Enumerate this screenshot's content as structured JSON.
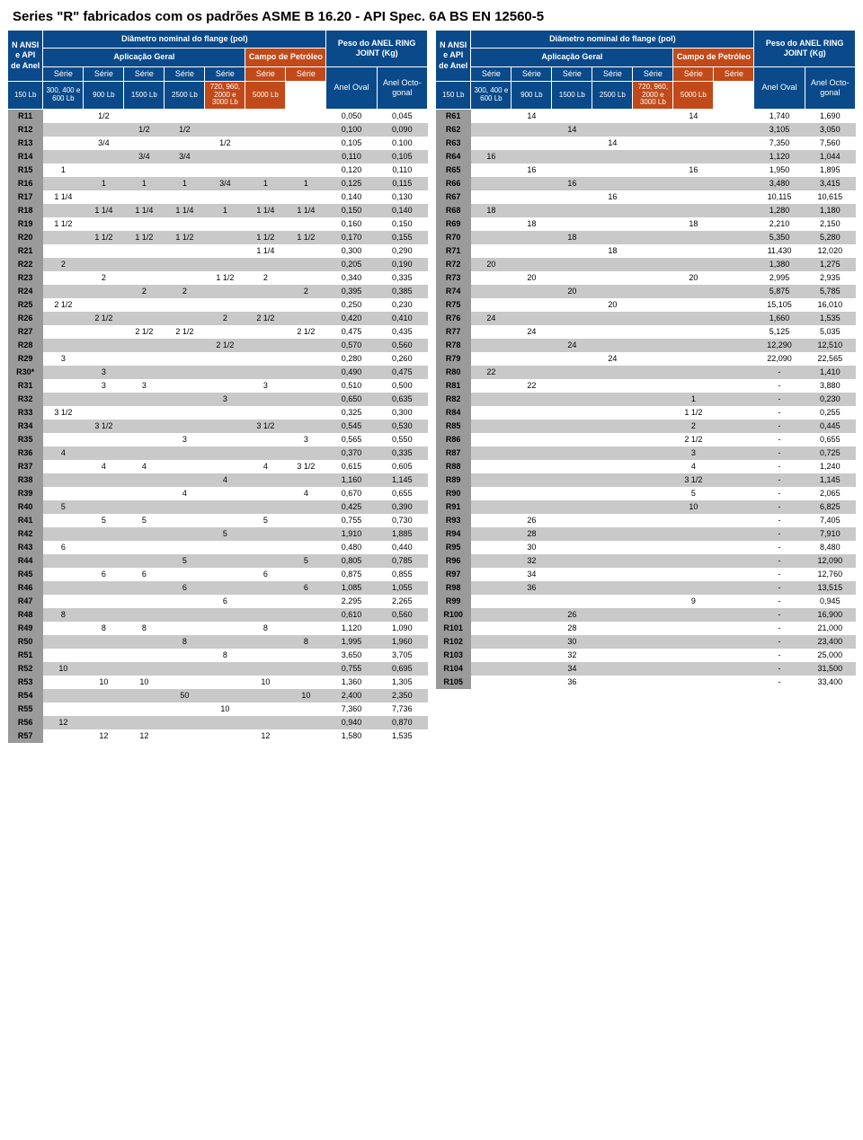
{
  "title": "Series \"R\" fabricados com os padrões ASME B 16.20 - API Spec. 6A BS EN 12560-5",
  "headers": {
    "ansi": "N ANSI e API de Anel",
    "diam": "Diâmetro nominal do flange (pol)",
    "geral": "Aplicação Geral",
    "campo": "Campo de Petróleo",
    "peso": "Peso do ANEL RING JOINT (Kg)",
    "serie": "Série",
    "anel_oval": "Anel Oval",
    "anel_oct": "Anel Octo-gonal",
    "cols": [
      "150 Lb",
      "300, 400 e 600 Lb",
      "900 Lb",
      "1500 Lb",
      "2500 Lb",
      "720, 960, 2000 e 3000 Lb",
      "5000 Lb"
    ]
  },
  "left_rows": [
    [
      "R11",
      "",
      "1/2",
      "",
      "",
      "",
      "",
      "",
      "0,050",
      "0,045"
    ],
    [
      "R12",
      "",
      "",
      "1/2",
      "1/2",
      "",
      "",
      "",
      "0,100",
      "0,090"
    ],
    [
      "R13",
      "",
      "3/4",
      "",
      "",
      "1/2",
      "",
      "",
      "0,105",
      "0.100"
    ],
    [
      "R14",
      "",
      "",
      "3/4",
      "3/4",
      "",
      "",
      "",
      "0,110",
      "0,105"
    ],
    [
      "R15",
      "1",
      "",
      "",
      "",
      "",
      "",
      "",
      "0,120",
      "0,110"
    ],
    [
      "R16",
      "",
      "1",
      "1",
      "1",
      "3/4",
      "1",
      "1",
      "0,125",
      "0,115"
    ],
    [
      "R17",
      "1 1/4",
      "",
      "",
      "",
      "",
      "",
      "",
      "0,140",
      "0,130"
    ],
    [
      "R18",
      "",
      "1 1/4",
      "1 1/4",
      "1 1/4",
      "1",
      "1 1/4",
      "1 1/4",
      "0,150",
      "0,140"
    ],
    [
      "R19",
      "1 1/2",
      "",
      "",
      "",
      "",
      "",
      "",
      "0,160",
      "0,150"
    ],
    [
      "R20",
      "",
      "1 1/2",
      "1 1/2",
      "1 1/2",
      "",
      "1 1/2",
      "1 1/2",
      "0,170",
      "0,155"
    ],
    [
      "R21",
      "",
      "",
      "",
      "",
      "",
      "1 1/4",
      "",
      "0,300",
      "0,290"
    ],
    [
      "R22",
      "2",
      "",
      "",
      "",
      "",
      "",
      "",
      "0,205",
      "0,190"
    ],
    [
      "R23",
      "",
      "2",
      "",
      "",
      "1 1/2",
      "2",
      "",
      "0,340",
      "0,335"
    ],
    [
      "R24",
      "",
      "",
      "2",
      "2",
      "",
      "",
      "2",
      "0,395",
      "0,385"
    ],
    [
      "R25",
      "2 1/2",
      "",
      "",
      "",
      "",
      "",
      "",
      "0,250",
      "0,230"
    ],
    [
      "R26",
      "",
      "2 1/2",
      "",
      "",
      "2",
      "2 1/2",
      "",
      "0,420",
      "0,410"
    ],
    [
      "R27",
      "",
      "",
      "2 1/2",
      "2 1/2",
      "",
      "",
      "2 1/2",
      "0,475",
      "0,435"
    ],
    [
      "R28",
      "",
      "",
      "",
      "",
      "2 1/2",
      "",
      "",
      "0,570",
      "0,560"
    ],
    [
      "R29",
      "3",
      "",
      "",
      "",
      "",
      "",
      "",
      "0,280",
      "0,260"
    ],
    [
      "R30*",
      "",
      "3",
      "",
      "",
      "",
      "",
      "",
      "0,490",
      "0,475"
    ],
    [
      "R31",
      "",
      "3",
      "3",
      "",
      "",
      "3",
      "",
      "0,510",
      "0,500"
    ],
    [
      "R32",
      "",
      "",
      "",
      "",
      "3",
      "",
      "",
      "0,650",
      "0,635"
    ],
    [
      "R33",
      "3 1/2",
      "",
      "",
      "",
      "",
      "",
      "",
      "0,325",
      "0,300"
    ],
    [
      "R34",
      "",
      "3 1/2",
      "",
      "",
      "",
      "3 1/2",
      "",
      "0,545",
      "0,530"
    ],
    [
      "R35",
      "",
      "",
      "",
      "3",
      "",
      "",
      "3",
      "0,565",
      "0,550"
    ],
    [
      "R36",
      "4",
      "",
      "",
      "",
      "",
      "",
      "",
      "0,370",
      "0,335"
    ],
    [
      "R37",
      "",
      "4",
      "4",
      "",
      "",
      "4",
      "3 1/2",
      "0,615",
      "0,605"
    ],
    [
      "R38",
      "",
      "",
      "",
      "",
      "4",
      "",
      "",
      "1,160",
      "1,145"
    ],
    [
      "R39",
      "",
      "",
      "",
      "4",
      "",
      "",
      "4",
      "0,670",
      "0,655"
    ],
    [
      "R40",
      "5",
      "",
      "",
      "",
      "",
      "",
      "",
      "0,425",
      "0,390"
    ],
    [
      "R41",
      "",
      "5",
      "5",
      "",
      "",
      "5",
      "",
      "0,755",
      "0,730"
    ],
    [
      "R42",
      "",
      "",
      "",
      "",
      "5",
      "",
      "",
      "1,910",
      "1,885"
    ],
    [
      "R43",
      "6",
      "",
      "",
      "",
      "",
      "",
      "",
      "0,480",
      "0,440"
    ],
    [
      "R44",
      "",
      "",
      "",
      "5",
      "",
      "",
      "5",
      "0,805",
      "0,785"
    ],
    [
      "R45",
      "",
      "6",
      "6",
      "",
      "",
      "6",
      "",
      "0,875",
      "0,855"
    ],
    [
      "R46",
      "",
      "",
      "",
      "6",
      "",
      "",
      "6",
      "1,085",
      "1,055"
    ],
    [
      "R47",
      "",
      "",
      "",
      "",
      "6",
      "",
      "",
      "2,295",
      "2,265"
    ],
    [
      "R48",
      "8",
      "",
      "",
      "",
      "",
      "",
      "",
      "0,610",
      "0,560"
    ],
    [
      "R49",
      "",
      "8",
      "8",
      "",
      "",
      "8",
      "",
      "1,120",
      "1,090"
    ],
    [
      "R50",
      "",
      "",
      "",
      "8",
      "",
      "",
      "8",
      "1,995",
      "1,960"
    ],
    [
      "R51",
      "",
      "",
      "",
      "",
      "8",
      "",
      "",
      "3,650",
      "3,705"
    ],
    [
      "R52",
      "10",
      "",
      "",
      "",
      "",
      "",
      "",
      "0,755",
      "0,695"
    ],
    [
      "R53",
      "",
      "10",
      "10",
      "",
      "",
      "10",
      "",
      "1,360",
      "1,305"
    ],
    [
      "R54",
      "",
      "",
      "",
      "50",
      "",
      "",
      "10",
      "2,400",
      "2,350"
    ],
    [
      "R55",
      "",
      "",
      "",
      "",
      "10",
      "",
      "",
      "7,360",
      "7,736"
    ],
    [
      "R56",
      "12",
      "",
      "",
      "",
      "",
      "",
      "",
      "0,940",
      "0,870"
    ],
    [
      "R57",
      "",
      "12",
      "12",
      "",
      "",
      "12",
      "",
      "1,580",
      "1,535"
    ]
  ],
  "right_rows": [
    [
      "R61",
      "",
      "14",
      "",
      "",
      "",
      "14",
      "",
      "1,740",
      "1,690"
    ],
    [
      "R62",
      "",
      "",
      "14",
      "",
      "",
      "",
      "",
      "3,105",
      "3,050"
    ],
    [
      "R63",
      "",
      "",
      "",
      "14",
      "",
      "",
      "",
      "7,350",
      "7,560"
    ],
    [
      "R64",
      "16",
      "",
      "",
      "",
      "",
      "",
      "",
      "1,120",
      "1,044"
    ],
    [
      "R65",
      "",
      "16",
      "",
      "",
      "",
      "16",
      "",
      "1,950",
      "1,895"
    ],
    [
      "R66",
      "",
      "",
      "16",
      "",
      "",
      "",
      "",
      "3,480",
      "3,415"
    ],
    [
      "R67",
      "",
      "",
      "",
      "16",
      "",
      "",
      "",
      "10,115",
      "10,615"
    ],
    [
      "R68",
      "18",
      "",
      "",
      "",
      "",
      "",
      "",
      "1,280",
      "1,180"
    ],
    [
      "R69",
      "",
      "18",
      "",
      "",
      "",
      "18",
      "",
      "2,210",
      "2,150"
    ],
    [
      "R70",
      "",
      "",
      "18",
      "",
      "",
      "",
      "",
      "5,350",
      "5,280"
    ],
    [
      "R71",
      "",
      "",
      "",
      "18",
      "",
      "",
      "",
      "11,430",
      "12,020"
    ],
    [
      "R72",
      "20",
      "",
      "",
      "",
      "",
      "",
      "",
      "1,380",
      "1,275"
    ],
    [
      "R73",
      "",
      "20",
      "",
      "",
      "",
      "20",
      "",
      "2,995",
      "2,935"
    ],
    [
      "R74",
      "",
      "",
      "20",
      "",
      "",
      "",
      "",
      "5,875",
      "5,785"
    ],
    [
      "R75",
      "",
      "",
      "",
      "20",
      "",
      "",
      "",
      "15,105",
      "16,010"
    ],
    [
      "R76",
      "24",
      "",
      "",
      "",
      "",
      "",
      "",
      "1,660",
      "1,535"
    ],
    [
      "R77",
      "",
      "24",
      "",
      "",
      "",
      "",
      "",
      "5,125",
      "5,035"
    ],
    [
      "R78",
      "",
      "",
      "24",
      "",
      "",
      "",
      "",
      "12,290",
      "12,510"
    ],
    [
      "R79",
      "",
      "",
      "",
      "24",
      "",
      "",
      "",
      "22,090",
      "22,565"
    ],
    [
      "R80",
      "22",
      "",
      "",
      "",
      "",
      "",
      "",
      "-",
      "1,410"
    ],
    [
      "R81",
      "",
      "22",
      "",
      "",
      "",
      "",
      "",
      "-",
      "3,880"
    ],
    [
      "R82",
      "",
      "",
      "",
      "",
      "",
      "1",
      "",
      "-",
      "0,230"
    ],
    [
      "R84",
      "",
      "",
      "",
      "",
      "",
      "1 1/2",
      "",
      "-",
      "0,255"
    ],
    [
      "R85",
      "",
      "",
      "",
      "",
      "",
      "2",
      "",
      "-",
      "0,445"
    ],
    [
      "R86",
      "",
      "",
      "",
      "",
      "",
      "2 1/2",
      "",
      "-",
      "0,655"
    ],
    [
      "R87",
      "",
      "",
      "",
      "",
      "",
      "3",
      "",
      "-",
      "0,725"
    ],
    [
      "R88",
      "",
      "",
      "",
      "",
      "",
      "4",
      "",
      "-",
      "1,240"
    ],
    [
      "R89",
      "",
      "",
      "",
      "",
      "",
      "3 1/2",
      "",
      "-",
      "1,145"
    ],
    [
      "R90",
      "",
      "",
      "",
      "",
      "",
      "5",
      "",
      "-",
      "2,065"
    ],
    [
      "R91",
      "",
      "",
      "",
      "",
      "",
      "10",
      "",
      "-",
      "6,825"
    ],
    [
      "R93",
      "",
      "26",
      "",
      "",
      "",
      "",
      "",
      "-",
      "7,405"
    ],
    [
      "R94",
      "",
      "28",
      "",
      "",
      "",
      "",
      "",
      "-",
      "7,910"
    ],
    [
      "R95",
      "",
      "30",
      "",
      "",
      "",
      "",
      "",
      "-",
      "8,480"
    ],
    [
      "R96",
      "",
      "32",
      "",
      "",
      "",
      "",
      "",
      "-",
      "12,090"
    ],
    [
      "R97",
      "",
      "34",
      "",
      "",
      "",
      "",
      "",
      "-",
      "12,760"
    ],
    [
      "R98",
      "",
      "36",
      "",
      "",
      "",
      "",
      "",
      "-",
      "13,515"
    ],
    [
      "R99",
      "",
      "",
      "",
      "",
      "",
      "9",
      "",
      "-",
      "0,945"
    ],
    [
      "R100",
      "",
      "",
      "26",
      "",
      "",
      "",
      "",
      "-",
      "16,900"
    ],
    [
      "R101",
      "",
      "",
      "28",
      "",
      "",
      "",
      "",
      "-",
      "21,000"
    ],
    [
      "R102",
      "",
      "",
      "30",
      "",
      "",
      "",
      "",
      "-",
      "23,400"
    ],
    [
      "R103",
      "",
      "",
      "32",
      "",
      "",
      "",
      "",
      "-",
      "25,000"
    ],
    [
      "R104",
      "",
      "",
      "34",
      "",
      "",
      "",
      "",
      "-",
      "31,500"
    ],
    [
      "R105",
      "",
      "",
      "36",
      "",
      "",
      "",
      "",
      "-",
      "33,400"
    ]
  ],
  "colors": {
    "header_blue": "#0a4a8a",
    "header_orange": "#c24a1a",
    "row_alt": "#c9c9c9",
    "row_key": "#9a9a9a"
  }
}
